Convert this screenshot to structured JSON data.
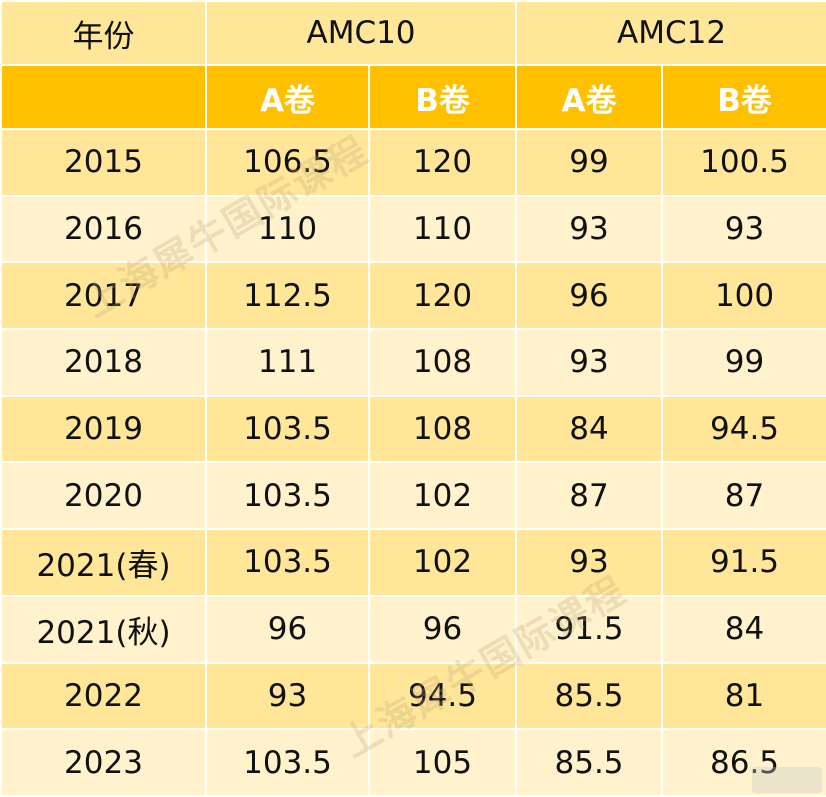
{
  "header": {
    "year_label": "年份",
    "amc10_label": "AMC10",
    "amc12_label": "AMC12",
    "amc10_a": "A卷",
    "amc10_b": "B卷",
    "amc12_a": "A卷",
    "amc12_b": "B卷"
  },
  "rows": [
    {
      "year": "2015",
      "amc10_a": "106.5",
      "amc10_b": "120",
      "amc12_a": "99",
      "amc12_b": "100.5"
    },
    {
      "year": "2016",
      "amc10_a": "110",
      "amc10_b": "110",
      "amc12_a": "93",
      "amc12_b": "93"
    },
    {
      "year": "2017",
      "amc10_a": "112.5",
      "amc10_b": "120",
      "amc12_a": "96",
      "amc12_b": "100"
    },
    {
      "year": "2018",
      "amc10_a": "111",
      "amc10_b": "108",
      "amc12_a": "93",
      "amc12_b": "99"
    },
    {
      "year": "2019",
      "amc10_a": "103.5",
      "amc10_b": "108",
      "amc12_a": "84",
      "amc12_b": "94.5"
    },
    {
      "year": "2020",
      "amc10_a": "103.5",
      "amc10_b": "102",
      "amc12_a": "87",
      "amc12_b": "87"
    },
    {
      "year": "2021(春)",
      "amc10_a": "103.5",
      "amc10_b": "102",
      "amc12_a": "93",
      "amc12_b": "91.5"
    },
    {
      "year": "2021(秋)",
      "amc10_a": "96",
      "amc10_b": "96",
      "amc12_a": "91.5",
      "amc12_b": "84"
    },
    {
      "year": "2022",
      "amc10_a": "93",
      "amc10_b": "94.5",
      "amc12_a": "85.5",
      "amc12_b": "81"
    },
    {
      "year": "2023",
      "amc10_a": "103.5",
      "amc10_b": "105",
      "amc12_a": "85.5",
      "amc12_b": "86.5"
    }
  ],
  "watermark": "上海犀牛国际课程",
  "colors": {
    "header_top": "#ffe799",
    "header_sub": "#ffc000",
    "row_odd": "#ffe699",
    "row_even": "#fff2cc"
  }
}
